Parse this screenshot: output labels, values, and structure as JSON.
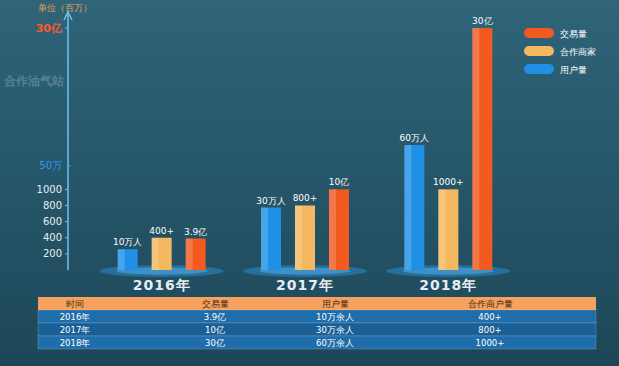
{
  "chart_data": {
    "type": "bar",
    "y_label": "单位（百万）",
    "annotations": [
      "合作油气站"
    ],
    "categories": [
      "2016年",
      "2017年",
      "2018年"
    ],
    "series": [
      {
        "name": "交易量",
        "color": "#f25a1f",
        "values": [
          390,
          1000,
          3000
        ],
        "value_labels": [
          "3.9亿",
          "10亿",
          "30亿"
        ]
      },
      {
        "name": "合作商家",
        "color": "#f4b860",
        "values": [
          400,
          800,
          1000
        ],
        "value_labels": [
          "400+",
          "800+",
          "1000+"
        ]
      },
      {
        "name": "用户量",
        "color": "#1f90e6",
        "values": [
          10,
          30,
          60
        ],
        "value_labels": [
          "10万人",
          "30万人",
          "60万人"
        ],
        "axis": "y2"
      }
    ],
    "ylim": [
      0,
      3100
    ],
    "yticks": [
      200,
      400,
      600,
      800,
      1000,
      {
        "value": 3000,
        "label": "30亿"
      }
    ],
    "y2lim": [
      0,
      120
    ],
    "y2ticks": [
      {
        "value": 50,
        "label": "50万"
      }
    ],
    "grid": false,
    "legend": "upper right",
    "data_labels": true,
    "table": {
      "columns": [
        "时间",
        "交易量",
        "用户量",
        "合作商户量"
      ],
      "rows": [
        [
          "2016年",
          "3.9亿",
          "10万余人",
          "400+"
        ],
        [
          "2017年",
          "10亿",
          "30万余人",
          "800+"
        ],
        [
          "2018年",
          "30亿",
          "60万余人",
          "1000+"
        ]
      ]
    }
  }
}
